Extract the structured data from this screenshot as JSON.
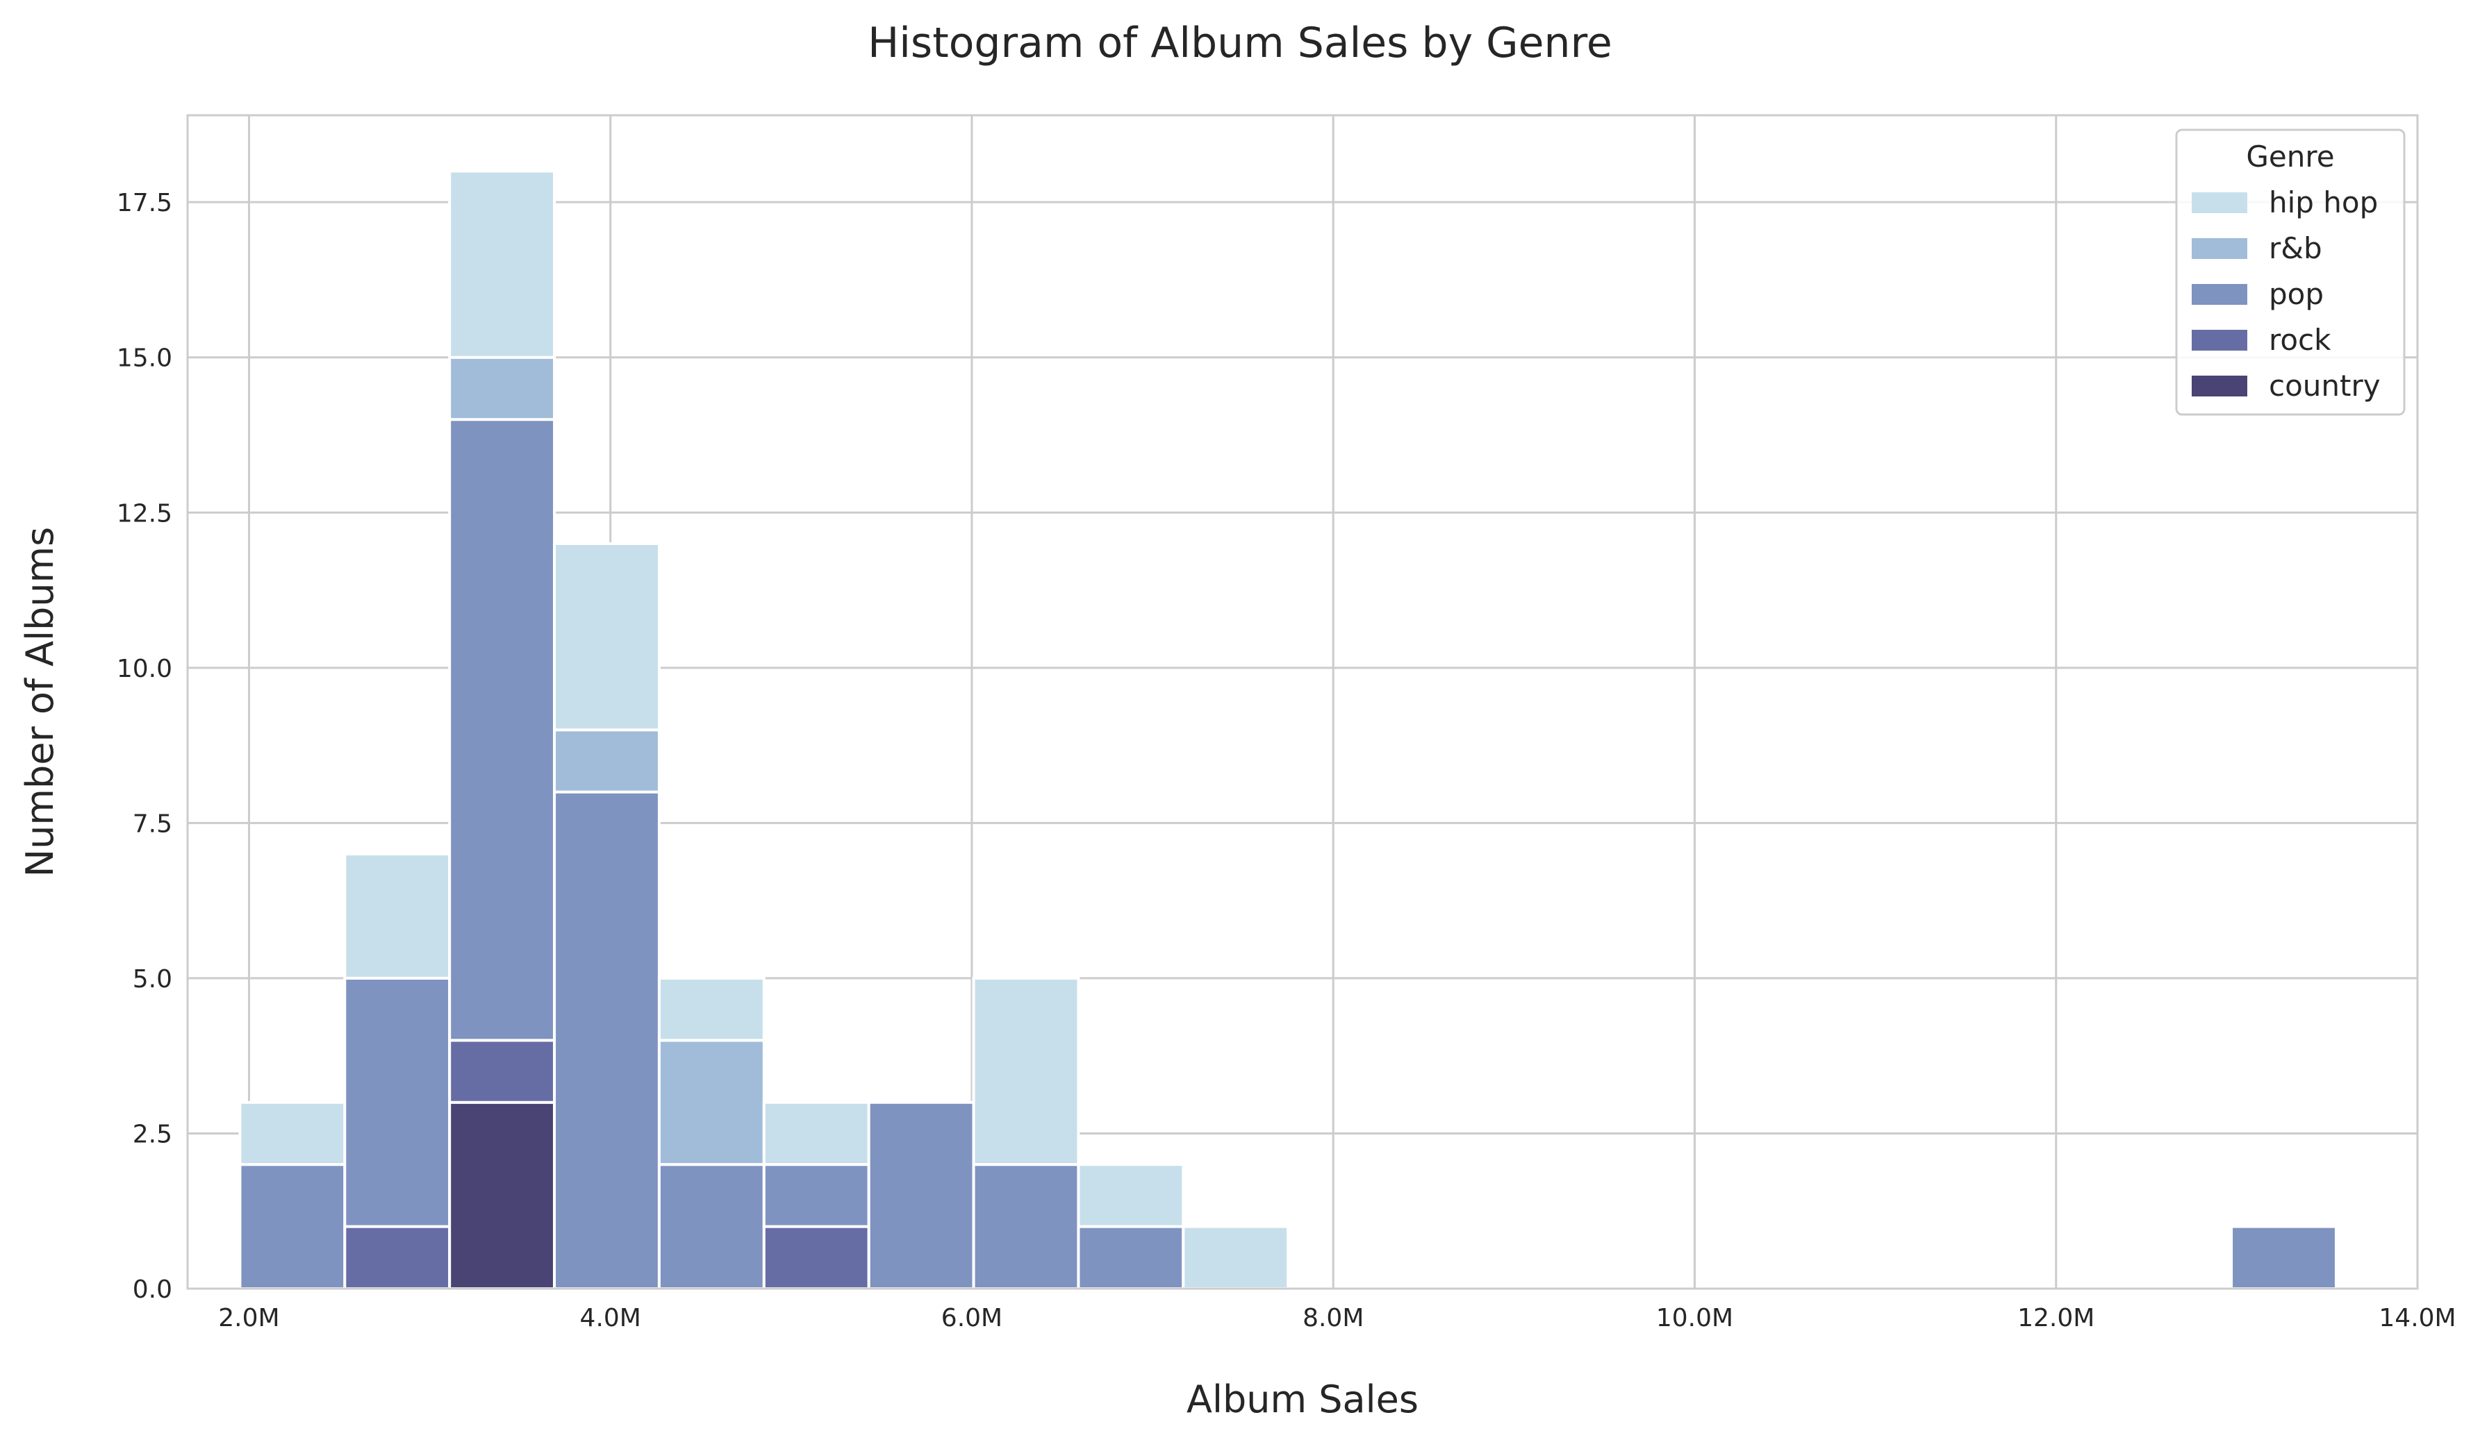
{
  "chart_data": {
    "type": "bar",
    "subtype": "stacked-histogram",
    "title": "Histogram of Album Sales by Genre",
    "xlabel": "Album Sales",
    "ylabel": "Number of Albums",
    "xlim": [
      1.66,
      14.0
    ],
    "ylim": [
      0,
      18.9
    ],
    "x_ticks": [
      2,
      4,
      6,
      8,
      10,
      12,
      14
    ],
    "x_tick_labels": [
      "2.0M",
      "4.0M",
      "6.0M",
      "8.0M",
      "10.0M",
      "12.0M",
      "14.0M"
    ],
    "y_ticks": [
      0,
      2.5,
      5,
      7.5,
      10,
      12.5,
      15,
      17.5
    ],
    "y_tick_labels": [
      "0.0",
      "2.5",
      "5.0",
      "7.5",
      "10.0",
      "12.5",
      "15.0",
      "17.5"
    ],
    "grid": true,
    "legend": {
      "title": "Genre",
      "position": "top-right"
    },
    "bin_edges": [
      1.95,
      2.53,
      3.11,
      3.69,
      4.27,
      4.85,
      5.43,
      6.01,
      6.59,
      7.17,
      7.75,
      8.33,
      8.91,
      9.49,
      10.07,
      10.65,
      11.23,
      11.81,
      12.39,
      12.97,
      13.55
    ],
    "series": [
      {
        "name": "country",
        "color": "#4a4474",
        "values": [
          0,
          0,
          3,
          0,
          0,
          0,
          0,
          0,
          0,
          0,
          0,
          0,
          0,
          0,
          0,
          0,
          0,
          0,
          0,
          0
        ]
      },
      {
        "name": "rock",
        "color": "#666da4",
        "values": [
          0,
          1,
          1,
          0,
          0,
          1,
          0,
          0,
          0,
          0,
          0,
          0,
          0,
          0,
          0,
          0,
          0,
          0,
          0,
          0
        ]
      },
      {
        "name": "pop",
        "color": "#7f93c0",
        "values": [
          2,
          4,
          10,
          8,
          2,
          1,
          3,
          2,
          1,
          0,
          0,
          0,
          0,
          0,
          0,
          0,
          0,
          0,
          0,
          1
        ]
      },
      {
        "name": "r&b",
        "color": "#a0bcd8",
        "values": [
          0,
          0,
          1,
          1,
          2,
          0,
          0,
          0,
          0,
          0,
          0,
          0,
          0,
          0,
          0,
          0,
          0,
          0,
          0,
          0
        ]
      },
      {
        "name": "hip hop",
        "color": "#c7dfea",
        "values": [
          1,
          2,
          3,
          3,
          1,
          1,
          0,
          3,
          1,
          1,
          0,
          0,
          0,
          0,
          0,
          0,
          0,
          0,
          0,
          0
        ]
      }
    ]
  }
}
